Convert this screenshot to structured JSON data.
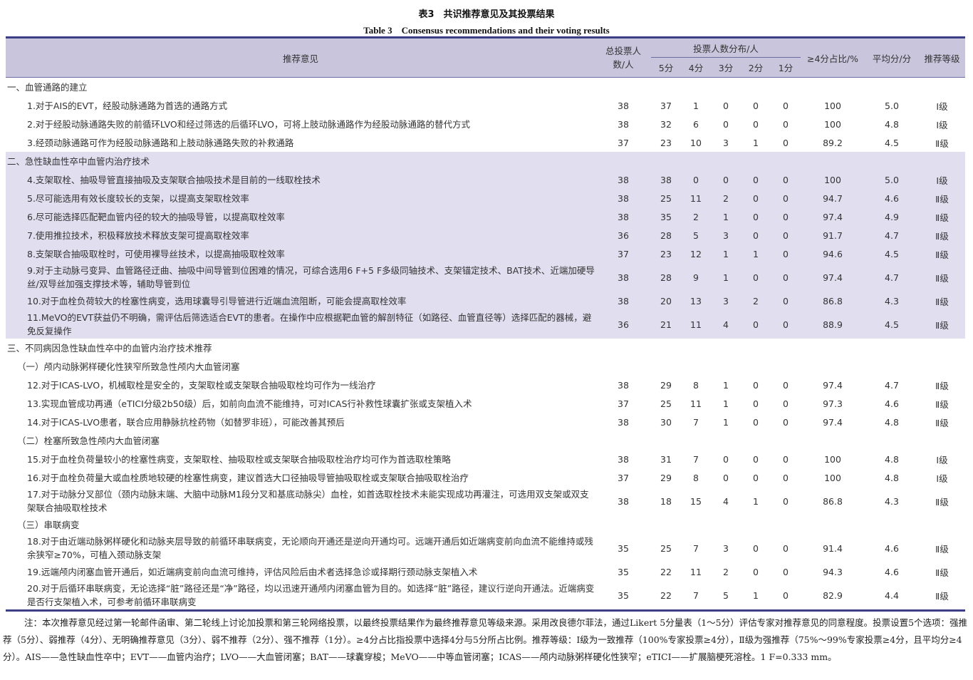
{
  "title_cn": "表3　共识推荐意见及其投票结果",
  "title_en": "Table 3　Consensus recommendations and their voting results",
  "headers": {
    "rec": "推荐意见",
    "total": "总投票人数/人",
    "dist": "投票人数分布/人",
    "s5": "5分",
    "s4": "4分",
    "s3": "3分",
    "s2": "2分",
    "s1": "1分",
    "pct": "≥4分占比/%",
    "avg": "平均分/分",
    "grade": "推荐等级"
  },
  "rows": [
    {
      "type": "section",
      "level": 1,
      "text": "一、血管通路的建立"
    },
    {
      "type": "data",
      "level": 3,
      "text": "1.对于AIS的EVT，经股动脉通路为首选的通路方式",
      "v": [
        "38",
        "37",
        "1",
        "0",
        "0",
        "0",
        "100",
        "5.0",
        "Ⅰ级"
      ]
    },
    {
      "type": "data",
      "level": 3,
      "text": "2.对于经股动脉通路失败的前循环LVO和经过筛选的后循环LVO，可将上肢动脉通路作为经股动脉通路的替代方式",
      "v": [
        "38",
        "32",
        "6",
        "0",
        "0",
        "0",
        "100",
        "4.8",
        "Ⅰ级"
      ]
    },
    {
      "type": "data",
      "level": 3,
      "text": "3.经颈动脉通路可作为经股动脉通路和上肢动脉通路失败的补救通路",
      "v": [
        "37",
        "23",
        "10",
        "3",
        "1",
        "0",
        "89.2",
        "4.5",
        "Ⅱ级"
      ]
    },
    {
      "type": "section",
      "level": 1,
      "shade": true,
      "text": "二、急性缺血性卒中血管内治疗技术"
    },
    {
      "type": "data",
      "level": 3,
      "shade": true,
      "text": "4.支架取栓、抽吸导管直接抽吸及支架联合抽吸技术是目前的一线取栓技术",
      "v": [
        "38",
        "38",
        "0",
        "0",
        "0",
        "0",
        "100",
        "5.0",
        "Ⅰ级"
      ]
    },
    {
      "type": "data",
      "level": 3,
      "shade": true,
      "text": "5.尽可能选用有效长度较长的支架，以提高支架取栓效率",
      "v": [
        "38",
        "25",
        "11",
        "2",
        "0",
        "0",
        "94.7",
        "4.6",
        "Ⅱ级"
      ]
    },
    {
      "type": "data",
      "level": 3,
      "shade": true,
      "text": "6.尽可能选择匹配靶血管内径的较大的抽吸导管，以提高取栓效率",
      "v": [
        "38",
        "35",
        "2",
        "1",
        "0",
        "0",
        "97.4",
        "4.9",
        "Ⅱ级"
      ]
    },
    {
      "type": "data",
      "level": 3,
      "shade": true,
      "text": "7.使用推拉技术，积极释放技术释放支架可提高取栓效率",
      "v": [
        "36",
        "28",
        "5",
        "3",
        "0",
        "0",
        "91.7",
        "4.7",
        "Ⅱ级"
      ]
    },
    {
      "type": "data",
      "level": 3,
      "shade": true,
      "text": "8.支架联合抽吸取栓时，可使用裸导丝技术，以提高抽吸取栓效率",
      "v": [
        "37",
        "23",
        "12",
        "1",
        "1",
        "0",
        "94.6",
        "4.5",
        "Ⅱ级"
      ]
    },
    {
      "type": "data",
      "level": 3,
      "shade": true,
      "double": true,
      "text": "9.对于主动脉弓变异、血管路径迂曲、抽吸中间导管到位困难的情况，可综合选用6 F+5 F多级同轴技术、支架锚定技术、BAT技术、近端加硬导丝/双导丝加强支撑技术等，辅助导管到位",
      "v": [
        "38",
        "28",
        "9",
        "1",
        "0",
        "0",
        "97.4",
        "4.7",
        "Ⅱ级"
      ]
    },
    {
      "type": "data",
      "level": 3,
      "shade": true,
      "text": "10.对于血栓负荷较大的栓塞性病变，选用球囊导引导管进行近端血流阻断，可能会提高取栓效率",
      "v": [
        "38",
        "20",
        "13",
        "3",
        "2",
        "0",
        "86.8",
        "4.3",
        "Ⅱ级"
      ]
    },
    {
      "type": "data",
      "level": 3,
      "shade": true,
      "double": true,
      "text": "11.MeVO的EVT获益仍不明确，需评估后筛选适合EVT的患者。在操作中应根据靶血管的解剖特征（如路径、血管直径等）选择匹配的器械，避免反复操作",
      "v": [
        "36",
        "21",
        "11",
        "4",
        "0",
        "0",
        "88.9",
        "4.5",
        "Ⅱ级"
      ]
    },
    {
      "type": "section",
      "level": 1,
      "text": "三、不同病因急性缺血性卒中的血管内治疗技术推荐"
    },
    {
      "type": "section",
      "level": 2,
      "text": "（一）颅内动脉粥样硬化性狭窄所致急性颅内大血管闭塞"
    },
    {
      "type": "data",
      "level": 3,
      "text": "12.对于ICAS-LVO，机械取栓是安全的，支架取栓或支架联合抽吸取栓均可作为一线治疗",
      "v": [
        "38",
        "29",
        "8",
        "1",
        "0",
        "0",
        "97.4",
        "4.7",
        "Ⅱ级"
      ]
    },
    {
      "type": "data",
      "level": 3,
      "text": "13.实现血管成功再通（eTICI分级2b50级）后，如前向血流不能维持，可对ICAS行补救性球囊扩张或支架植入术",
      "v": [
        "37",
        "25",
        "11",
        "1",
        "0",
        "0",
        "97.3",
        "4.6",
        "Ⅱ级"
      ]
    },
    {
      "type": "data",
      "level": 3,
      "text": "14.对于ICAS-LVO患者，联合应用静脉抗栓药物（如替罗非班），可能改善其预后",
      "v": [
        "38",
        "30",
        "7",
        "1",
        "0",
        "0",
        "97.4",
        "4.8",
        "Ⅱ级"
      ]
    },
    {
      "type": "section",
      "level": 2,
      "text": "（二）栓塞所致急性颅内大血管闭塞"
    },
    {
      "type": "data",
      "level": 3,
      "text": "15.对于血栓负荷量较小的栓塞性病变，支架取栓、抽吸取栓或支架联合抽吸取栓治疗均可作为首选取栓策略",
      "v": [
        "38",
        "31",
        "7",
        "0",
        "0",
        "0",
        "100",
        "4.8",
        "Ⅰ级"
      ]
    },
    {
      "type": "data",
      "level": 3,
      "text": "16.对于血栓负荷量大或血栓质地较硬的栓塞性病变，建议首选大口径抽吸导管抽吸取栓或支架联合抽吸取栓治疗",
      "v": [
        "37",
        "29",
        "8",
        "0",
        "0",
        "0",
        "100",
        "4.8",
        "Ⅰ级"
      ]
    },
    {
      "type": "data",
      "level": 3,
      "double": true,
      "text": "17.对于动脉分叉部位（颈内动脉末端、大脑中动脉M1段分叉和基底动脉尖）血栓，如首选取栓技术未能实现成功再灌注，可选用双支架或双支架联合抽吸取栓技术",
      "v": [
        "38",
        "18",
        "15",
        "4",
        "1",
        "0",
        "86.8",
        "4.3",
        "Ⅱ级"
      ]
    },
    {
      "type": "section",
      "level": 2,
      "text": "（三）串联病变"
    },
    {
      "type": "data",
      "level": 3,
      "double": true,
      "text": "18.对于由近端动脉粥样硬化和动脉夹层导致的前循环串联病变，无论顺向开通还是逆向开通均可。远端开通后如近端病变前向血流不能维持或残余狭窄≥70%，可植入颈动脉支架",
      "v": [
        "35",
        "25",
        "7",
        "3",
        "0",
        "0",
        "91.4",
        "4.6",
        "Ⅱ级"
      ]
    },
    {
      "type": "data",
      "level": 3,
      "text": "19.远端颅内闭塞血管开通后，如近端病变前向血流可维持，评估风险后由术者选择急诊或择期行颈动脉支架植入术",
      "v": [
        "35",
        "22",
        "11",
        "2",
        "0",
        "0",
        "94.3",
        "4.6",
        "Ⅱ级"
      ]
    },
    {
      "type": "data",
      "level": 3,
      "double": true,
      "text": "20.对于后循环串联病变，无论选择“脏”路径还是“净”路径，均以迅速开通颅内闭塞血管为目的。如选择“脏”路径，建议行逆向开通法。近端病变是否行支架植入术，可参考前循环串联病变",
      "v": [
        "35",
        "22",
        "7",
        "5",
        "1",
        "0",
        "82.9",
        "4.4",
        "Ⅱ级"
      ]
    }
  ],
  "note": "注：本次推荐意见经过第一轮邮件函审、第二轮线上讨论加投票和第三轮网络投票，以最终投票结果作为最终推荐意见等级来源。采用改良德尔菲法，通过Likert 5分量表（1～5分）评估专家对推荐意见的同意程度。投票设置5个选项：强推荐（5分）、弱推荐（4分）、无明确推荐意见（3分）、弱不推荐（2分）、强不推荐（1分）。≥4分占比指投票中选择4分与5分所占比例。推荐等级：Ⅰ级为一致推荐（100%专家投票≥4分），Ⅱ级为强推荐（75%～99%专家投票≥4分，且平均分≥4分）。AIS——急性缺血性卒中；EVT——血管内治疗；LVO——大血管闭塞；BAT——球囊穿梭；MeVO——中等血管闭塞；ICAS——颅内动脉粥样硬化性狭窄；eTICI——扩展脑梗死溶栓。1 F=0.333 mm。",
  "colors": {
    "header_bg": "#c9c5dd",
    "shade_bg": "#e1def0",
    "rule": "#3c3f86"
  }
}
